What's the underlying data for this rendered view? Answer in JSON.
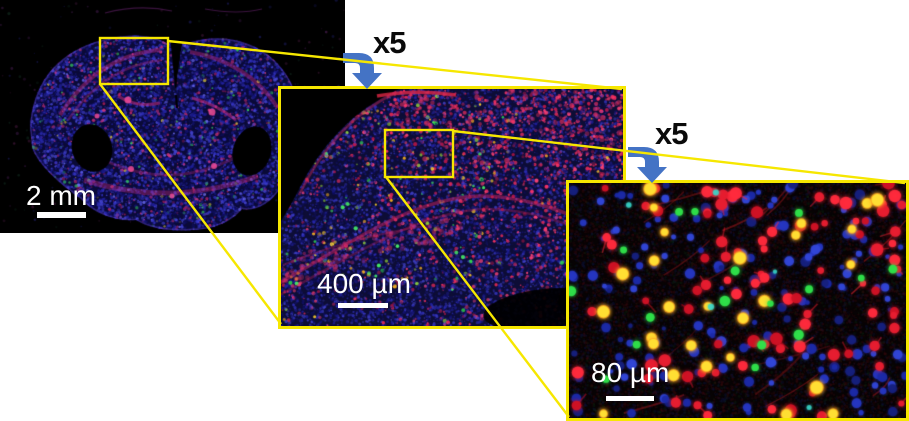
{
  "figure": {
    "panels": [
      {
        "scale_bar": {
          "label": "2 mm"
        }
      },
      {
        "scale_bar": {
          "label": "400 µm"
        }
      },
      {
        "scale_bar": {
          "label": "80 µm"
        }
      }
    ],
    "magnifications": [
      {
        "label": "x5"
      },
      {
        "label": "x5"
      }
    ],
    "colors": {
      "annotation_yellow": "#f6e700",
      "arrow_blue": "#4473c5",
      "scale_bar_white": "#ffffff",
      "magnification_label_black": "#0a0a0a",
      "panel_background_black": "#000000",
      "page_background_white": "#ffffff",
      "nuclei_blue": "#2636c2",
      "signal_red": "#ff2a3c",
      "signal_green": "#2fe24a",
      "signal_yellow": "#ffd92c",
      "tissue_magenta": "#e0347f"
    }
  }
}
